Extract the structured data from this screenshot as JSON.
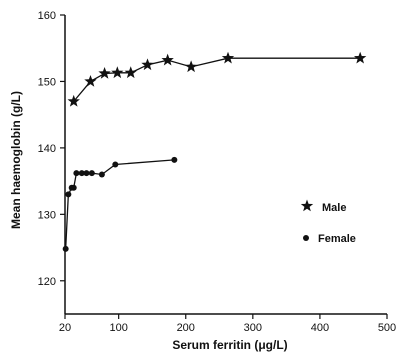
{
  "chart_data": {
    "type": "line",
    "xlabel": "Serum ferritin (μg/L)",
    "ylabel": "Mean haemoglobin (g/L)",
    "xlim": [
      20,
      500
    ],
    "ylim": [
      115,
      160
    ],
    "xticks": [
      20,
      100,
      200,
      300,
      400,
      500
    ],
    "yticks": [
      120,
      130,
      140,
      150,
      160
    ],
    "grid": false,
    "legend_position": "right",
    "series": [
      {
        "name": "Male",
        "marker": "star",
        "color": "#111111",
        "x": [
          33,
          58,
          79,
          98,
          118,
          143,
          173,
          208,
          263,
          460
        ],
        "y": [
          147,
          150,
          151.2,
          151.3,
          151.3,
          152.5,
          153.2,
          152.2,
          153.5,
          153.5
        ]
      },
      {
        "name": "Female",
        "marker": "circle",
        "color": "#111111",
        "x": [
          21,
          25,
          30,
          33,
          37,
          45,
          52,
          60,
          75,
          95,
          183
        ],
        "y": [
          124.8,
          133,
          134,
          134,
          136.2,
          136.2,
          136.2,
          136.2,
          136,
          137.5,
          138.2
        ]
      }
    ]
  }
}
